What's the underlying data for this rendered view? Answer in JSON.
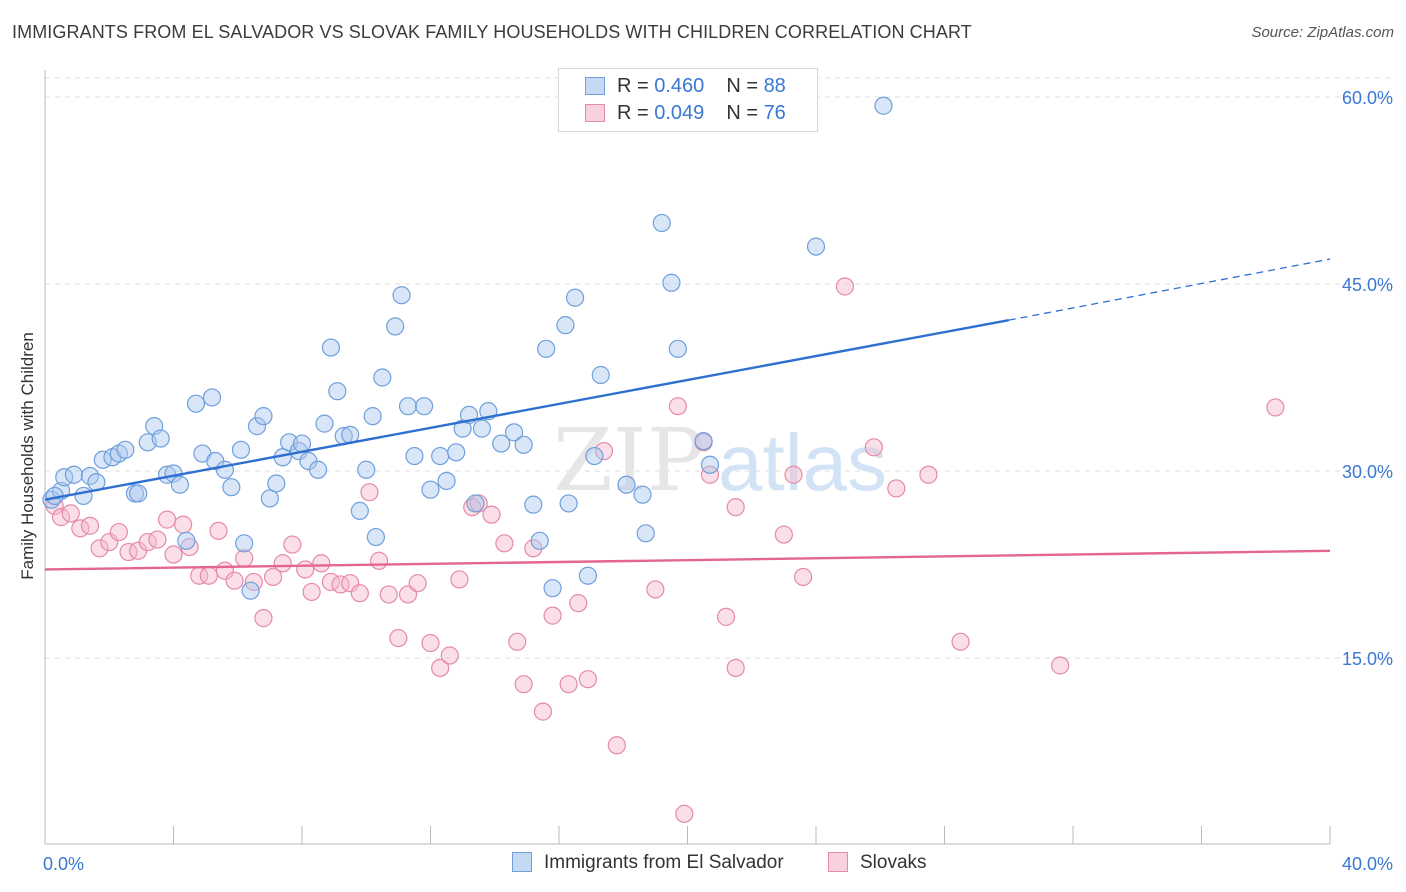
{
  "title": "IMMIGRANTS FROM EL SALVADOR VS SLOVAK FAMILY HOUSEHOLDS WITH CHILDREN CORRELATION CHART",
  "source": "Source: ZipAtlas.com",
  "watermark": {
    "zip": "ZIP",
    "atlas": "atlas"
  },
  "legend": {
    "r_label": "R = ",
    "n_label": "N = ",
    "entries": [
      {
        "r": "0.460",
        "n": "88"
      },
      {
        "r": "0.049",
        "n": "76"
      }
    ]
  },
  "colors": {
    "blue_fill": "#aac8ee",
    "blue_stroke": "#6f9fdc",
    "blue_line": "#2e6fd0",
    "pink_fill": "#f5b8cb",
    "pink_stroke": "#e58aa8",
    "pink_line": "#e4668f",
    "tick_text": "#3a78d2",
    "grid": "#dcdcdc"
  },
  "chart_data": {
    "type": "scatter",
    "title": "IMMIGRANTS FROM EL SALVADOR VS SLOVAK FAMILY HOUSEHOLDS WITH CHILDREN CORRELATION CHART",
    "xlabel": "",
    "ylabel": "Family Households with Children",
    "xlim": [
      0,
      40
    ],
    "ylim": [
      0,
      62
    ],
    "x_tick_labels": [
      "0.0%",
      "40.0%"
    ],
    "y_ticks": [
      15,
      30,
      45,
      60
    ],
    "y_tick_labels": [
      "15.0%",
      "30.0%",
      "45.0%",
      "60.0%"
    ],
    "grid": true,
    "legend_position": "top-center",
    "series": [
      {
        "name": "Immigrants from El Salvador",
        "color": "#6f9fdc",
        "trend": {
          "x": [
            0,
            30
          ],
          "y": [
            27.7,
            42.1
          ],
          "dashed_to": [
            40,
            47.0
          ]
        },
        "points": [
          [
            0.2,
            27.7
          ],
          [
            0.5,
            28.4
          ],
          [
            0.6,
            29.5
          ],
          [
            0.9,
            29.7
          ],
          [
            1.2,
            28.0
          ],
          [
            1.4,
            29.6
          ],
          [
            1.6,
            29.1
          ],
          [
            1.8,
            30.9
          ],
          [
            2.1,
            31.1
          ],
          [
            2.3,
            31.4
          ],
          [
            2.5,
            31.7
          ],
          [
            2.8,
            28.2
          ],
          [
            2.9,
            28.2
          ],
          [
            3.2,
            32.3
          ],
          [
            3.4,
            33.6
          ],
          [
            3.6,
            32.6
          ],
          [
            3.8,
            29.7
          ],
          [
            4.0,
            29.8
          ],
          [
            4.2,
            28.9
          ],
          [
            4.4,
            24.4
          ],
          [
            4.7,
            35.4
          ],
          [
            4.9,
            31.4
          ],
          [
            5.2,
            35.9
          ],
          [
            5.3,
            30.8
          ],
          [
            5.6,
            30.1
          ],
          [
            5.8,
            28.7
          ],
          [
            6.1,
            31.7
          ],
          [
            6.2,
            24.2
          ],
          [
            6.4,
            20.4
          ],
          [
            6.6,
            33.6
          ],
          [
            6.8,
            34.4
          ],
          [
            7.0,
            27.8
          ],
          [
            7.2,
            29.0
          ],
          [
            7.4,
            31.1
          ],
          [
            7.6,
            32.3
          ],
          [
            7.9,
            31.6
          ],
          [
            8.0,
            32.2
          ],
          [
            8.2,
            30.8
          ],
          [
            8.5,
            30.1
          ],
          [
            8.7,
            33.8
          ],
          [
            8.9,
            39.9
          ],
          [
            9.1,
            36.4
          ],
          [
            9.3,
            32.8
          ],
          [
            9.5,
            32.9
          ],
          [
            9.8,
            26.8
          ],
          [
            10.0,
            30.1
          ],
          [
            10.2,
            34.4
          ],
          [
            10.3,
            24.7
          ],
          [
            10.5,
            37.5
          ],
          [
            10.9,
            41.6
          ],
          [
            11.1,
            44.1
          ],
          [
            11.3,
            35.2
          ],
          [
            11.5,
            31.2
          ],
          [
            11.8,
            35.2
          ],
          [
            12.0,
            28.5
          ],
          [
            12.3,
            31.2
          ],
          [
            12.5,
            29.2
          ],
          [
            12.8,
            31.5
          ],
          [
            13.0,
            33.4
          ],
          [
            13.2,
            34.5
          ],
          [
            13.4,
            27.4
          ],
          [
            13.6,
            33.4
          ],
          [
            13.8,
            34.8
          ],
          [
            14.2,
            32.2
          ],
          [
            14.6,
            33.1
          ],
          [
            14.9,
            32.1
          ],
          [
            15.2,
            27.3
          ],
          [
            15.4,
            24.4
          ],
          [
            15.6,
            39.8
          ],
          [
            15.8,
            20.6
          ],
          [
            16.2,
            41.7
          ],
          [
            16.3,
            27.4
          ],
          [
            16.5,
            43.9
          ],
          [
            16.9,
            21.6
          ],
          [
            17.1,
            31.2
          ],
          [
            17.3,
            37.7
          ],
          [
            18.1,
            28.9
          ],
          [
            18.6,
            28.1
          ],
          [
            18.7,
            25.0
          ],
          [
            19.2,
            49.9
          ],
          [
            19.5,
            45.1
          ],
          [
            19.7,
            39.8
          ],
          [
            20.5,
            32.4
          ],
          [
            20.7,
            30.5
          ],
          [
            22.6,
            58.1
          ],
          [
            24.0,
            48.0
          ],
          [
            26.1,
            59.3
          ],
          [
            0.3,
            28.0
          ]
        ]
      },
      {
        "name": "Slovaks",
        "color": "#e58aa8",
        "trend": {
          "x": [
            0,
            40
          ],
          "y": [
            22.1,
            23.6
          ]
        },
        "points": [
          [
            0.3,
            27.2
          ],
          [
            0.5,
            26.3
          ],
          [
            0.8,
            26.6
          ],
          [
            1.1,
            25.4
          ],
          [
            1.4,
            25.6
          ],
          [
            1.7,
            23.8
          ],
          [
            2.0,
            24.3
          ],
          [
            2.3,
            25.1
          ],
          [
            2.6,
            23.5
          ],
          [
            2.9,
            23.6
          ],
          [
            3.2,
            24.3
          ],
          [
            3.5,
            24.5
          ],
          [
            3.8,
            26.1
          ],
          [
            4.0,
            23.3
          ],
          [
            4.3,
            25.7
          ],
          [
            4.5,
            23.9
          ],
          [
            4.8,
            21.6
          ],
          [
            5.1,
            21.6
          ],
          [
            5.4,
            25.2
          ],
          [
            5.6,
            22.0
          ],
          [
            5.9,
            21.2
          ],
          [
            6.2,
            23.0
          ],
          [
            6.5,
            21.1
          ],
          [
            6.8,
            18.2
          ],
          [
            7.1,
            21.5
          ],
          [
            7.4,
            22.6
          ],
          [
            7.7,
            24.1
          ],
          [
            8.1,
            22.1
          ],
          [
            8.3,
            20.3
          ],
          [
            8.6,
            22.6
          ],
          [
            8.9,
            21.1
          ],
          [
            9.2,
            20.9
          ],
          [
            9.5,
            21.0
          ],
          [
            9.8,
            20.2
          ],
          [
            10.1,
            28.3
          ],
          [
            10.4,
            22.8
          ],
          [
            10.7,
            20.1
          ],
          [
            11.0,
            16.6
          ],
          [
            11.3,
            20.1
          ],
          [
            11.6,
            21.0
          ],
          [
            12.0,
            16.2
          ],
          [
            12.3,
            14.2
          ],
          [
            12.6,
            15.2
          ],
          [
            12.9,
            21.3
          ],
          [
            13.3,
            27.1
          ],
          [
            13.5,
            27.4
          ],
          [
            13.9,
            26.5
          ],
          [
            14.3,
            24.2
          ],
          [
            14.7,
            16.3
          ],
          [
            14.9,
            12.9
          ],
          [
            15.2,
            23.8
          ],
          [
            15.5,
            10.7
          ],
          [
            15.8,
            18.4
          ],
          [
            16.3,
            12.9
          ],
          [
            16.6,
            19.4
          ],
          [
            16.9,
            13.3
          ],
          [
            17.4,
            31.6
          ],
          [
            17.8,
            8.0
          ],
          [
            19.0,
            20.5
          ],
          [
            19.7,
            35.2
          ],
          [
            19.9,
            2.5
          ],
          [
            20.5,
            32.3
          ],
          [
            20.7,
            29.7
          ],
          [
            21.2,
            18.3
          ],
          [
            21.5,
            27.1
          ],
          [
            21.5,
            14.2
          ],
          [
            23.0,
            24.9
          ],
          [
            23.3,
            29.7
          ],
          [
            23.6,
            21.5
          ],
          [
            24.9,
            44.8
          ],
          [
            25.8,
            31.9
          ],
          [
            26.5,
            28.6
          ],
          [
            27.5,
            29.7
          ],
          [
            28.5,
            16.3
          ],
          [
            31.6,
            14.4
          ],
          [
            38.3,
            35.1
          ]
        ]
      }
    ]
  }
}
